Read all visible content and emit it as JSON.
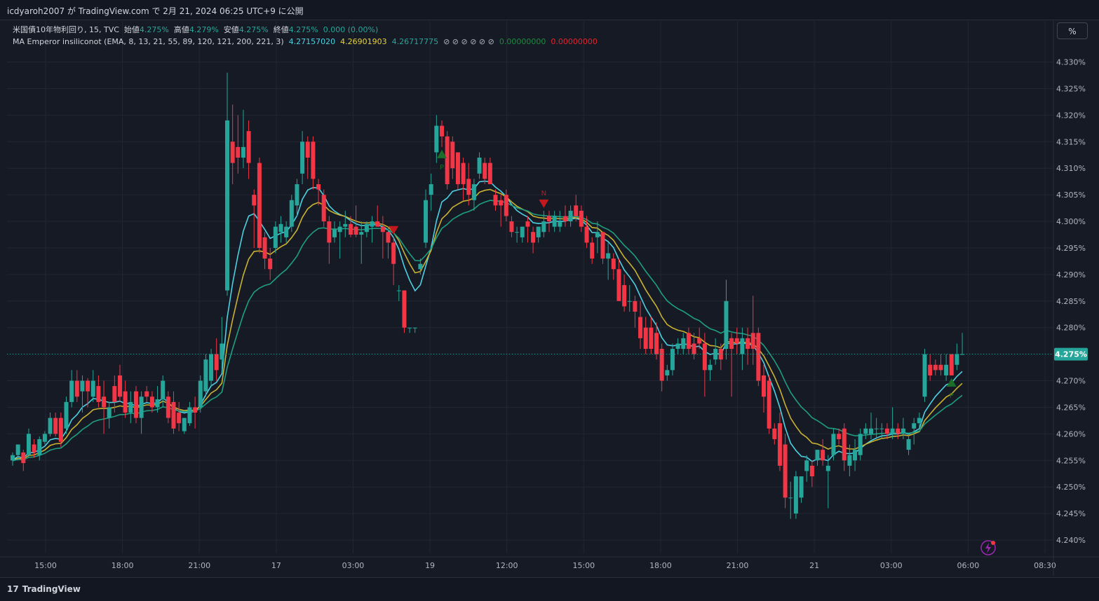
{
  "header": {
    "publish_text": "icdyaroh2007 が TradingView.com で 2月 21, 2024 06:25 UTC+9 に公開"
  },
  "legend": {
    "symbol_label": "米国債10年物利回り, 15, TVC",
    "open_label": "始値",
    "open_value": "4.275%",
    "high_label": "高値",
    "high_value": "4.279%",
    "low_label": "安値",
    "low_value": "4.275%",
    "close_label": "終値",
    "close_value": "4.275%",
    "change_value": "0.000 (0.00%)",
    "indicator_label": "MA Emperor insiliconot (EMA, 8, 13, 21, 55, 89, 120, 121, 200, 221, 3)",
    "ma1_value": "4.27157020",
    "ma2_value": "4.26901903",
    "ma3_value": "4.26717775",
    "na_symbols": "⊘ ⊘ ⊘ ⊘ ⊘ ⊘",
    "val_green": "0.00000000",
    "val_red": "0.00000000"
  },
  "percent_button_label": "%",
  "footer": {
    "brand": "TradingView",
    "logo_glyph": "17"
  },
  "colors": {
    "up": "#26a69a",
    "down": "#f23645",
    "ema_fast": "#4dd0e1",
    "ema_mid": "#c9b232",
    "ema_slow": "#1f9e80",
    "price_line": "#26a69a",
    "signal_up": "#1b6e2a",
    "signal_down": "#c2181e"
  },
  "chart_data": {
    "type": "candlestick",
    "symbol": "米国債10年物利回り",
    "interval": "15",
    "ylim": [
      4.2375,
      4.3335
    ],
    "yticks": [
      "4.240%",
      "4.245%",
      "4.250%",
      "4.255%",
      "4.260%",
      "4.265%",
      "4.270%",
      "4.275%",
      "4.280%",
      "4.285%",
      "4.290%",
      "4.295%",
      "4.300%",
      "4.305%",
      "4.310%",
      "4.315%",
      "4.320%",
      "4.325%",
      "4.330%"
    ],
    "xticks": [
      "15:00",
      "18:00",
      "21:00",
      "17",
      "03:00",
      "19",
      "12:00",
      "15:00",
      "18:00",
      "21:00",
      "21",
      "03:00",
      "06:00",
      "08:30"
    ],
    "last_price": 4.275,
    "last_price_label": "4.275%",
    "candles": [
      {
        "o": 4.255,
        "h": 4.2565,
        "l": 4.254,
        "c": 4.256
      },
      {
        "o": 4.256,
        "h": 4.258,
        "l": 4.255,
        "c": 4.258
      },
      {
        "o": 4.2565,
        "h": 4.257,
        "l": 4.253,
        "c": 4.2545
      },
      {
        "o": 4.256,
        "h": 4.261,
        "l": 4.2555,
        "c": 4.26
      },
      {
        "o": 4.258,
        "h": 4.259,
        "l": 4.2555,
        "c": 4.2565
      },
      {
        "o": 4.256,
        "h": 4.2595,
        "l": 4.255,
        "c": 4.259
      },
      {
        "o": 4.2585,
        "h": 4.2605,
        "l": 4.258,
        "c": 4.26
      },
      {
        "o": 4.26,
        "h": 4.264,
        "l": 4.2595,
        "c": 4.263
      },
      {
        "o": 4.263,
        "h": 4.264,
        "l": 4.2595,
        "c": 4.26
      },
      {
        "o": 4.263,
        "h": 4.264,
        "l": 4.2575,
        "c": 4.2585
      },
      {
        "o": 4.261,
        "h": 4.267,
        "l": 4.26,
        "c": 4.266
      },
      {
        "o": 4.266,
        "h": 4.272,
        "l": 4.265,
        "c": 4.27
      },
      {
        "o": 4.27,
        "h": 4.272,
        "l": 4.266,
        "c": 4.267
      },
      {
        "o": 4.268,
        "h": 4.271,
        "l": 4.264,
        "c": 4.27
      },
      {
        "o": 4.27,
        "h": 4.2705,
        "l": 4.265,
        "c": 4.268
      },
      {
        "o": 4.267,
        "h": 4.272,
        "l": 4.266,
        "c": 4.27
      },
      {
        "o": 4.269,
        "h": 4.271,
        "l": 4.265,
        "c": 4.266
      },
      {
        "o": 4.267,
        "h": 4.27,
        "l": 4.26,
        "c": 4.265
      },
      {
        "o": 4.263,
        "h": 4.266,
        "l": 4.261,
        "c": 4.265
      },
      {
        "o": 4.269,
        "h": 4.271,
        "l": 4.264,
        "c": 4.266
      },
      {
        "o": 4.271,
        "h": 4.273,
        "l": 4.266,
        "c": 4.267
      },
      {
        "o": 4.268,
        "h": 4.27,
        "l": 4.263,
        "c": 4.264
      },
      {
        "o": 4.264,
        "h": 4.268,
        "l": 4.262,
        "c": 4.266
      },
      {
        "o": 4.268,
        "h": 4.269,
        "l": 4.262,
        "c": 4.263
      },
      {
        "o": 4.263,
        "h": 4.268,
        "l": 4.26,
        "c": 4.267
      },
      {
        "o": 4.268,
        "h": 4.269,
        "l": 4.266,
        "c": 4.267
      },
      {
        "o": 4.267,
        "h": 4.268,
        "l": 4.264,
        "c": 4.265
      },
      {
        "o": 4.265,
        "h": 4.269,
        "l": 4.264,
        "c": 4.2665
      },
      {
        "o": 4.2665,
        "h": 4.271,
        "l": 4.265,
        "c": 4.27
      },
      {
        "o": 4.267,
        "h": 4.268,
        "l": 4.262,
        "c": 4.263
      },
      {
        "o": 4.266,
        "h": 4.268,
        "l": 4.26,
        "c": 4.261
      },
      {
        "o": 4.264,
        "h": 4.266,
        "l": 4.2605,
        "c": 4.262
      },
      {
        "o": 4.2605,
        "h": 4.263,
        "l": 4.26,
        "c": 4.263
      },
      {
        "o": 4.262,
        "h": 4.266,
        "l": 4.2615,
        "c": 4.265
      },
      {
        "o": 4.265,
        "h": 4.267,
        "l": 4.261,
        "c": 4.264
      },
      {
        "o": 4.265,
        "h": 4.271,
        "l": 4.264,
        "c": 4.27
      },
      {
        "o": 4.268,
        "h": 4.275,
        "l": 4.267,
        "c": 4.274
      },
      {
        "o": 4.27,
        "h": 4.276,
        "l": 4.269,
        "c": 4.275
      },
      {
        "o": 4.275,
        "h": 4.278,
        "l": 4.27,
        "c": 4.272
      },
      {
        "o": 4.274,
        "h": 4.282,
        "l": 4.272,
        "c": 4.277
      },
      {
        "o": 4.287,
        "h": 4.328,
        "l": 4.286,
        "c": 4.319
      },
      {
        "o": 4.315,
        "h": 4.322,
        "l": 4.307,
        "c": 4.311
      },
      {
        "o": 4.314,
        "h": 4.32,
        "l": 4.309,
        "c": 4.312
      },
      {
        "o": 4.312,
        "h": 4.321,
        "l": 4.31,
        "c": 4.314
      },
      {
        "o": 4.317,
        "h": 4.319,
        "l": 4.308,
        "c": 4.311
      },
      {
        "o": 4.305,
        "h": 4.306,
        "l": 4.295,
        "c": 4.303
      },
      {
        "o": 4.311,
        "h": 4.312,
        "l": 4.294,
        "c": 4.295
      },
      {
        "o": 4.297,
        "h": 4.298,
        "l": 4.291,
        "c": 4.293
      },
      {
        "o": 4.293,
        "h": 4.295,
        "l": 4.289,
        "c": 4.291
      },
      {
        "o": 4.295,
        "h": 4.3,
        "l": 4.294,
        "c": 4.299
      },
      {
        "o": 4.298,
        "h": 4.301,
        "l": 4.296,
        "c": 4.2995
      },
      {
        "o": 4.297,
        "h": 4.3,
        "l": 4.296,
        "c": 4.299
      },
      {
        "o": 4.299,
        "h": 4.305,
        "l": 4.298,
        "c": 4.304
      },
      {
        "o": 4.303,
        "h": 4.308,
        "l": 4.301,
        "c": 4.307
      },
      {
        "o": 4.309,
        "h": 4.317,
        "l": 4.307,
        "c": 4.315
      },
      {
        "o": 4.315,
        "h": 4.316,
        "l": 4.308,
        "c": 4.312
      },
      {
        "o": 4.315,
        "h": 4.316,
        "l": 4.306,
        "c": 4.308
      },
      {
        "o": 4.307,
        "h": 4.308,
        "l": 4.303,
        "c": 4.306
      },
      {
        "o": 4.305,
        "h": 4.306,
        "l": 4.299,
        "c": 4.3
      },
      {
        "o": 4.3,
        "h": 4.301,
        "l": 4.292,
        "c": 4.296
      },
      {
        "o": 4.297,
        "h": 4.3,
        "l": 4.296,
        "c": 4.2985
      },
      {
        "o": 4.298,
        "h": 4.3,
        "l": 4.293,
        "c": 4.299
      },
      {
        "o": 4.299,
        "h": 4.302,
        "l": 4.297,
        "c": 4.2995
      },
      {
        "o": 4.2995,
        "h": 4.301,
        "l": 4.297,
        "c": 4.2975
      },
      {
        "o": 4.299,
        "h": 4.303,
        "l": 4.297,
        "c": 4.2975
      },
      {
        "o": 4.2975,
        "h": 4.3,
        "l": 4.292,
        "c": 4.298
      },
      {
        "o": 4.298,
        "h": 4.3,
        "l": 4.297,
        "c": 4.2995
      },
      {
        "o": 4.299,
        "h": 4.301,
        "l": 4.296,
        "c": 4.3
      },
      {
        "o": 4.3,
        "h": 4.303,
        "l": 4.299,
        "c": 4.299
      },
      {
        "o": 4.299,
        "h": 4.301,
        "l": 4.293,
        "c": 4.298
      },
      {
        "o": 4.298,
        "h": 4.299,
        "l": 4.293,
        "c": 4.296
      },
      {
        "o": 4.296,
        "h": 4.297,
        "l": 4.288,
        "c": 4.292
      },
      {
        "o": 4.287,
        "h": 4.288,
        "l": 4.285,
        "c": 4.287
      },
      {
        "o": 4.287,
        "h": 4.287,
        "l": 4.279,
        "c": 4.28
      },
      {
        "o": 4.28,
        "h": 4.28,
        "l": 4.279,
        "c": 4.28
      },
      {
        "o": 4.28,
        "h": 4.28,
        "l": 4.279,
        "c": 4.28
      },
      {
        "o": 4.291,
        "h": 4.293,
        "l": 4.29,
        "c": 4.292
      },
      {
        "o": 4.296,
        "h": 4.306,
        "l": 4.295,
        "c": 4.304
      },
      {
        "o": 4.305,
        "h": 4.309,
        "l": 4.302,
        "c": 4.307
      },
      {
        "o": 4.313,
        "h": 4.32,
        "l": 4.311,
        "c": 4.318
      },
      {
        "o": 4.318,
        "h": 4.319,
        "l": 4.314,
        "c": 4.316
      },
      {
        "o": 4.316,
        "h": 4.317,
        "l": 4.306,
        "c": 4.307
      },
      {
        "o": 4.315,
        "h": 4.316,
        "l": 4.308,
        "c": 4.31
      },
      {
        "o": 4.313,
        "h": 4.313,
        "l": 4.306,
        "c": 4.307
      },
      {
        "o": 4.311,
        "h": 4.312,
        "l": 4.304,
        "c": 4.307
      },
      {
        "o": 4.308,
        "h": 4.311,
        "l": 4.303,
        "c": 4.305
      },
      {
        "o": 4.304,
        "h": 4.308,
        "l": 4.302,
        "c": 4.307
      },
      {
        "o": 4.309,
        "h": 4.313,
        "l": 4.308,
        "c": 4.312
      },
      {
        "o": 4.311,
        "h": 4.312,
        "l": 4.307,
        "c": 4.308
      },
      {
        "o": 4.311,
        "h": 4.312,
        "l": 4.307,
        "c": 4.307
      },
      {
        "o": 4.305,
        "h": 4.306,
        "l": 4.302,
        "c": 4.303
      },
      {
        "o": 4.304,
        "h": 4.305,
        "l": 4.299,
        "c": 4.303
      },
      {
        "o": 4.305,
        "h": 4.306,
        "l": 4.3,
        "c": 4.301
      },
      {
        "o": 4.3,
        "h": 4.301,
        "l": 4.297,
        "c": 4.298
      },
      {
        "o": 4.298,
        "h": 4.299,
        "l": 4.296,
        "c": 4.298
      },
      {
        "o": 4.297,
        "h": 4.299,
        "l": 4.296,
        "c": 4.299
      },
      {
        "o": 4.3,
        "h": 4.301,
        "l": 4.296,
        "c": 4.299
      },
      {
        "o": 4.298,
        "h": 4.299,
        "l": 4.294,
        "c": 4.296
      },
      {
        "o": 4.297,
        "h": 4.299,
        "l": 4.296,
        "c": 4.299
      },
      {
        "o": 4.298,
        "h": 4.302,
        "l": 4.297,
        "c": 4.3
      },
      {
        "o": 4.301,
        "h": 4.302,
        "l": 4.298,
        "c": 4.3
      },
      {
        "o": 4.299,
        "h": 4.302,
        "l": 4.298,
        "c": 4.301
      },
      {
        "o": 4.299,
        "h": 4.302,
        "l": 4.298,
        "c": 4.3
      },
      {
        "o": 4.301,
        "h": 4.303,
        "l": 4.299,
        "c": 4.3
      },
      {
        "o": 4.3,
        "h": 4.303,
        "l": 4.299,
        "c": 4.302
      },
      {
        "o": 4.303,
        "h": 4.305,
        "l": 4.3,
        "c": 4.301
      },
      {
        "o": 4.302,
        "h": 4.303,
        "l": 4.298,
        "c": 4.299
      },
      {
        "o": 4.299,
        "h": 4.301,
        "l": 4.295,
        "c": 4.296
      },
      {
        "o": 4.296,
        "h": 4.297,
        "l": 4.292,
        "c": 4.293
      },
      {
        "o": 4.297,
        "h": 4.3,
        "l": 4.294,
        "c": 4.298
      },
      {
        "o": 4.298,
        "h": 4.298,
        "l": 4.292,
        "c": 4.293
      },
      {
        "o": 4.293,
        "h": 4.296,
        "l": 4.289,
        "c": 4.294
      },
      {
        "o": 4.293,
        "h": 4.294,
        "l": 4.289,
        "c": 4.291
      },
      {
        "o": 4.291,
        "h": 4.293,
        "l": 4.285,
        "c": 4.285
      },
      {
        "o": 4.288,
        "h": 4.29,
        "l": 4.283,
        "c": 4.284
      },
      {
        "o": 4.285,
        "h": 4.288,
        "l": 4.283,
        "c": 4.285
      },
      {
        "o": 4.285,
        "h": 4.286,
        "l": 4.28,
        "c": 4.283
      },
      {
        "o": 4.282,
        "h": 4.285,
        "l": 4.276,
        "c": 4.278
      },
      {
        "o": 4.28,
        "h": 4.282,
        "l": 4.275,
        "c": 4.276
      },
      {
        "o": 4.28,
        "h": 4.282,
        "l": 4.275,
        "c": 4.276
      },
      {
        "o": 4.279,
        "h": 4.281,
        "l": 4.274,
        "c": 4.275
      },
      {
        "o": 4.276,
        "h": 4.277,
        "l": 4.268,
        "c": 4.27
      },
      {
        "o": 4.271,
        "h": 4.273,
        "l": 4.27,
        "c": 4.272
      },
      {
        "o": 4.272,
        "h": 4.277,
        "l": 4.271,
        "c": 4.276
      },
      {
        "o": 4.276,
        "h": 4.278,
        "l": 4.275,
        "c": 4.277
      },
      {
        "o": 4.276,
        "h": 4.279,
        "l": 4.275,
        "c": 4.278
      },
      {
        "o": 4.279,
        "h": 4.28,
        "l": 4.275,
        "c": 4.276
      },
      {
        "o": 4.277,
        "h": 4.279,
        "l": 4.274,
        "c": 4.275
      },
      {
        "o": 4.278,
        "h": 4.28,
        "l": 4.276,
        "c": 4.277
      },
      {
        "o": 4.277,
        "h": 4.279,
        "l": 4.267,
        "c": 4.272
      },
      {
        "o": 4.272,
        "h": 4.274,
        "l": 4.27,
        "c": 4.273
      },
      {
        "o": 4.274,
        "h": 4.278,
        "l": 4.273,
        "c": 4.276
      },
      {
        "o": 4.276,
        "h": 4.277,
        "l": 4.272,
        "c": 4.274
      },
      {
        "o": 4.276,
        "h": 4.289,
        "l": 4.274,
        "c": 4.285
      },
      {
        "o": 4.278,
        "h": 4.279,
        "l": 4.267,
        "c": 4.276
      },
      {
        "o": 4.278,
        "h": 4.28,
        "l": 4.275,
        "c": 4.277
      },
      {
        "o": 4.275,
        "h": 4.28,
        "l": 4.272,
        "c": 4.278
      },
      {
        "o": 4.278,
        "h": 4.28,
        "l": 4.273,
        "c": 4.276
      },
      {
        "o": 4.279,
        "h": 4.286,
        "l": 4.273,
        "c": 4.276
      },
      {
        "o": 4.279,
        "h": 4.28,
        "l": 4.269,
        "c": 4.27
      },
      {
        "o": 4.271,
        "h": 4.273,
        "l": 4.264,
        "c": 4.267
      },
      {
        "o": 4.27,
        "h": 4.271,
        "l": 4.26,
        "c": 4.261
      },
      {
        "o": 4.261,
        "h": 4.262,
        "l": 4.258,
        "c": 4.259
      },
      {
        "o": 4.262,
        "h": 4.264,
        "l": 4.253,
        "c": 4.254
      },
      {
        "o": 4.258,
        "h": 4.26,
        "l": 4.246,
        "c": 4.248
      },
      {
        "o": 4.248,
        "h": 4.251,
        "l": 4.244,
        "c": 4.248
      },
      {
        "o": 4.245,
        "h": 4.253,
        "l": 4.244,
        "c": 4.252
      },
      {
        "o": 4.248,
        "h": 4.252,
        "l": 4.247,
        "c": 4.252
      },
      {
        "o": 4.253,
        "h": 4.256,
        "l": 4.251,
        "c": 4.255
      },
      {
        "o": 4.254,
        "h": 4.255,
        "l": 4.25,
        "c": 4.252
      },
      {
        "o": 4.255,
        "h": 4.257,
        "l": 4.254,
        "c": 4.257
      },
      {
        "o": 4.257,
        "h": 4.259,
        "l": 4.254,
        "c": 4.255
      },
      {
        "o": 4.253,
        "h": 4.256,
        "l": 4.246,
        "c": 4.254
      },
      {
        "o": 4.256,
        "h": 4.261,
        "l": 4.255,
        "c": 4.26
      },
      {
        "o": 4.26,
        "h": 4.261,
        "l": 4.258,
        "c": 4.259
      },
      {
        "o": 4.261,
        "h": 4.262,
        "l": 4.253,
        "c": 4.255
      },
      {
        "o": 4.254,
        "h": 4.258,
        "l": 4.252,
        "c": 4.256
      },
      {
        "o": 4.255,
        "h": 4.259,
        "l": 4.253,
        "c": 4.257
      },
      {
        "o": 4.256,
        "h": 4.261,
        "l": 4.255,
        "c": 4.26
      },
      {
        "o": 4.26,
        "h": 4.262,
        "l": 4.259,
        "c": 4.261
      },
      {
        "o": 4.26,
        "h": 4.264,
        "l": 4.259,
        "c": 4.261
      },
      {
        "o": 4.261,
        "h": 4.263,
        "l": 4.259,
        "c": 4.261
      },
      {
        "o": 4.261,
        "h": 4.262,
        "l": 4.259,
        "c": 4.261
      },
      {
        "o": 4.261,
        "h": 4.262,
        "l": 4.259,
        "c": 4.26
      },
      {
        "o": 4.26,
        "h": 4.265,
        "l": 4.259,
        "c": 4.261
      },
      {
        "o": 4.261,
        "h": 4.262,
        "l": 4.259,
        "c": 4.26
      },
      {
        "o": 4.26,
        "h": 4.263,
        "l": 4.259,
        "c": 4.261
      },
      {
        "o": 4.257,
        "h": 4.26,
        "l": 4.256,
        "c": 4.259
      },
      {
        "o": 4.261,
        "h": 4.263,
        "l": 4.258,
        "c": 4.262
      },
      {
        "o": 4.262,
        "h": 4.264,
        "l": 4.261,
        "c": 4.263
      },
      {
        "o": 4.267,
        "h": 4.276,
        "l": 4.266,
        "c": 4.275
      },
      {
        "o": 4.273,
        "h": 4.275,
        "l": 4.27,
        "c": 4.271
      },
      {
        "o": 4.273,
        "h": 4.274,
        "l": 4.271,
        "c": 4.272
      },
      {
        "o": 4.273,
        "h": 4.275,
        "l": 4.271,
        "c": 4.272
      },
      {
        "o": 4.271,
        "h": 4.275,
        "l": 4.27,
        "c": 4.273
      },
      {
        "o": 4.275,
        "h": 4.275,
        "l": 4.271,
        "c": 4.271
      },
      {
        "o": 4.273,
        "h": 4.277,
        "l": 4.272,
        "c": 4.275
      },
      {
        "o": 4.275,
        "h": 4.279,
        "l": 4.275,
        "c": 4.275
      }
    ],
    "signals": [
      {
        "index": 80,
        "type": "up",
        "label": "P"
      },
      {
        "index": 71,
        "type": "down",
        "label": ""
      },
      {
        "index": 99,
        "type": "down",
        "label": "N"
      },
      {
        "index": 175,
        "type": "up",
        "label": "P"
      }
    ]
  }
}
